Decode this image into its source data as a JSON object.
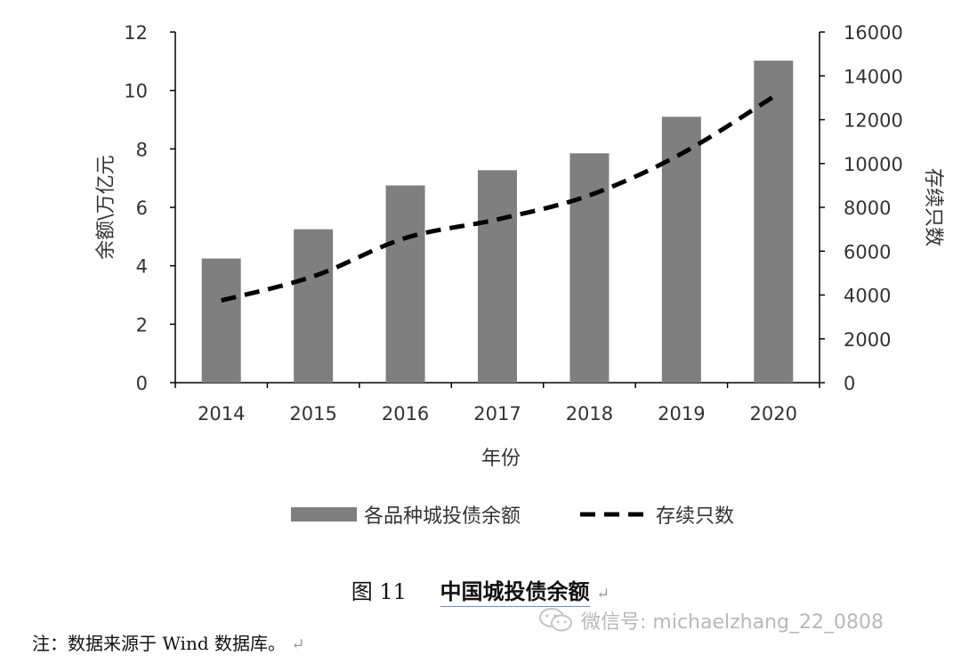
{
  "chart_data": {
    "type": "bar",
    "categories": [
      "2014",
      "2015",
      "2016",
      "2017",
      "2018",
      "2019",
      "2020"
    ],
    "series": [
      {
        "name": "各品种城投债余额",
        "type": "bar",
        "axis": "left",
        "values": [
          4.25,
          5.25,
          6.75,
          7.27,
          7.85,
          9.1,
          11.02
        ]
      },
      {
        "name": "存续只数",
        "type": "line",
        "style": "dashed",
        "axis": "right",
        "values": [
          3750,
          4850,
          6600,
          7450,
          8550,
          10450,
          13050
        ]
      }
    ],
    "xlabel": "年份",
    "ylabel": "余额\\万亿元",
    "y2label": "存续只数",
    "ylim": [
      0,
      12
    ],
    "y2lim": [
      0,
      16000
    ],
    "yticks": [
      "0",
      "2",
      "4",
      "6",
      "8",
      "10",
      "12"
    ],
    "y2ticks": [
      "0",
      "2000",
      "4000",
      "6000",
      "8000",
      "10000",
      "12000",
      "14000",
      "16000"
    ],
    "legend_position": "bottom",
    "grid": false,
    "colors": {
      "bar": "#7f7f7f",
      "line": "#000000"
    }
  },
  "caption": {
    "number": "图 11",
    "title": "中国城投债余额",
    "mark": "↵"
  },
  "watermark": {
    "text": "微信号: michaelzhang_22_0808",
    "icon": "wechat-icon"
  },
  "note": {
    "text": "注：数据来源于 Wind 数据库。",
    "mark": "↵"
  }
}
